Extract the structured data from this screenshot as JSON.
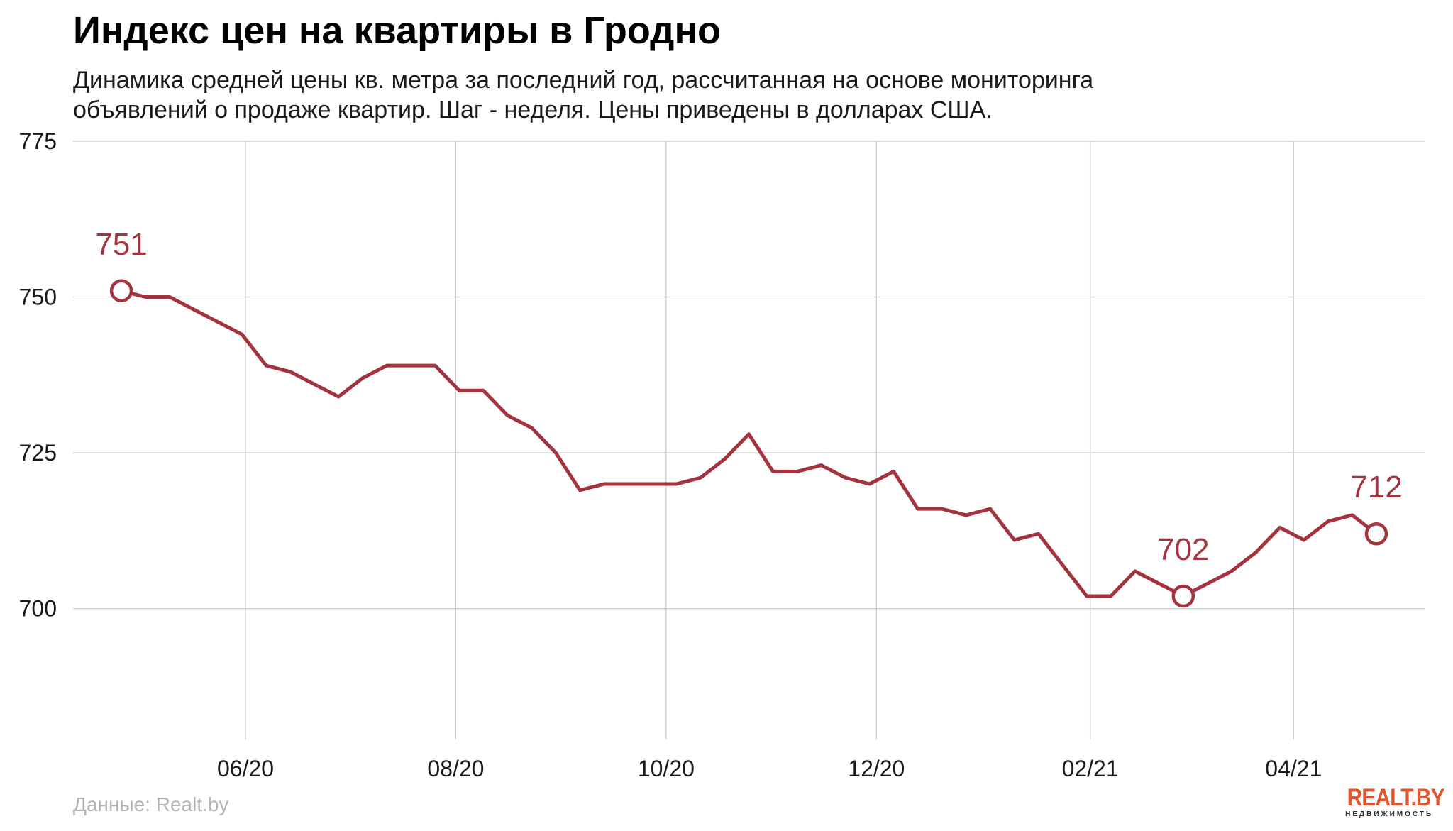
{
  "chart_data": {
    "type": "line",
    "title": "Индекс цен на квартиры в Гродно",
    "subtitle_lines": [
      "Динамика средней цены кв. метра за последний год, рассчитанная на основе мониторинга",
      "объявлений о продаже квартир. Шаг - неделя. Цены приведены в долларах США."
    ],
    "x_ticks": [
      {
        "date": "2020-06-01",
        "label": "06/20"
      },
      {
        "date": "2020-08-01",
        "label": "08/20"
      },
      {
        "date": "2020-10-01",
        "label": "10/20"
      },
      {
        "date": "2020-12-01",
        "label": "12/20"
      },
      {
        "date": "2021-02-01",
        "label": "02/21"
      },
      {
        "date": "2021-04-01",
        "label": "04/21"
      }
    ],
    "y_ticks": [
      700,
      725,
      750,
      775
    ],
    "ylim": [
      679,
      775
    ],
    "grid": true,
    "color": "#a3343f",
    "series": [
      {
        "points": [
          [
            "2020-04-26",
            751
          ],
          [
            "2020-05-03",
            750
          ],
          [
            "2020-05-10",
            750
          ],
          [
            "2020-05-17",
            748
          ],
          [
            "2020-05-24",
            746
          ],
          [
            "2020-05-31",
            744
          ],
          [
            "2020-06-07",
            739
          ],
          [
            "2020-06-14",
            738
          ],
          [
            "2020-06-21",
            736
          ],
          [
            "2020-06-28",
            734
          ],
          [
            "2020-07-05",
            737
          ],
          [
            "2020-07-12",
            739
          ],
          [
            "2020-07-19",
            739
          ],
          [
            "2020-07-26",
            739
          ],
          [
            "2020-08-02",
            735
          ],
          [
            "2020-08-09",
            735
          ],
          [
            "2020-08-16",
            731
          ],
          [
            "2020-08-23",
            729
          ],
          [
            "2020-08-30",
            725
          ],
          [
            "2020-09-06",
            719
          ],
          [
            "2020-09-13",
            720
          ],
          [
            "2020-09-20",
            720
          ],
          [
            "2020-09-27",
            720
          ],
          [
            "2020-10-04",
            720
          ],
          [
            "2020-10-11",
            721
          ],
          [
            "2020-10-18",
            724
          ],
          [
            "2020-10-25",
            728
          ],
          [
            "2020-11-01",
            722
          ],
          [
            "2020-11-08",
            722
          ],
          [
            "2020-11-15",
            723
          ],
          [
            "2020-11-22",
            721
          ],
          [
            "2020-11-29",
            720
          ],
          [
            "2020-12-06",
            722
          ],
          [
            "2020-12-13",
            716
          ],
          [
            "2020-12-20",
            716
          ],
          [
            "2020-12-27",
            715
          ],
          [
            "2021-01-03",
            716
          ],
          [
            "2021-01-10",
            711
          ],
          [
            "2021-01-17",
            712
          ],
          [
            "2021-01-24",
            707
          ],
          [
            "2021-01-31",
            702
          ],
          [
            "2021-02-07",
            702
          ],
          [
            "2021-02-14",
            706
          ],
          [
            "2021-02-21",
            704
          ],
          [
            "2021-02-28",
            702
          ],
          [
            "2021-03-07",
            704
          ],
          [
            "2021-03-14",
            706
          ],
          [
            "2021-03-21",
            709
          ],
          [
            "2021-03-28",
            713
          ],
          [
            "2021-04-04",
            711
          ],
          [
            "2021-04-11",
            714
          ],
          [
            "2021-04-18",
            715
          ],
          [
            "2021-04-25",
            712
          ]
        ]
      }
    ],
    "annotations": [
      {
        "date": "2020-04-26",
        "value": 751,
        "text": "751"
      },
      {
        "date": "2021-02-28",
        "value": 702,
        "text": "702"
      },
      {
        "date": "2021-04-25",
        "value": 712,
        "text": "712"
      }
    ],
    "source": "Данные: Realt.by"
  },
  "logo": {
    "main": "REALT.BY",
    "sub": "НЕДВИЖИМОСТЬ"
  }
}
